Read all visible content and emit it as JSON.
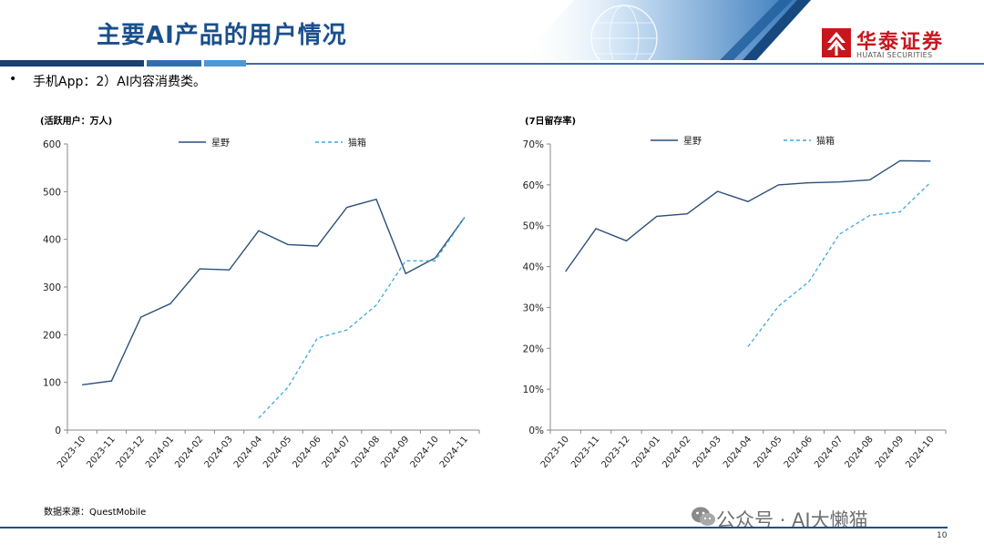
{
  "header": {
    "title": "主要AI产品的用户情况",
    "logo_cn": "华泰证券",
    "logo_en": "HUATAI SECURITIES",
    "brand_color": "#c8161d",
    "title_color": "#1a4f8a"
  },
  "bullet_symbol": "•",
  "subtitle": "手机App：2）AI内容消费类。",
  "source": "数据来源：QuestMobile",
  "watermark": "公众号 · AI大懒猫",
  "watermark_icon": "wechat-icon",
  "page_number": "10",
  "chart_data": [
    {
      "type": "line",
      "ylabel": "(活跃用户：万人)",
      "ylim": [
        0,
        600
      ],
      "yticks": [
        0,
        100,
        200,
        300,
        400,
        500,
        600
      ],
      "ytick_labels": [
        "0",
        "100",
        "200",
        "300",
        "400",
        "500",
        "600"
      ],
      "categories": [
        "2023-10",
        "2023-11",
        "2023-12",
        "2024-01",
        "2024-02",
        "2024-03",
        "2024-04",
        "2024-05",
        "2024-06",
        "2024-07",
        "2024-08",
        "2024-09",
        "2024-10",
        "2024-11"
      ],
      "legend_position": "top",
      "grid": false,
      "series": [
        {
          "name": "星野",
          "style": "solid",
          "color": "#2b4f7a",
          "values": [
            95,
            103,
            237,
            265,
            338,
            336,
            418,
            389,
            386,
            467,
            484,
            328,
            361,
            446
          ]
        },
        {
          "name": "猫箱",
          "style": "dashed",
          "color": "#3fa9dc",
          "values": [
            null,
            null,
            null,
            null,
            null,
            null,
            25,
            90,
            193,
            210,
            262,
            355,
            355,
            446
          ]
        }
      ]
    },
    {
      "type": "line",
      "ylabel": "(7日留存率)",
      "ylim": [
        0,
        70
      ],
      "yticks": [
        0,
        10,
        20,
        30,
        40,
        50,
        60,
        70
      ],
      "ytick_labels": [
        "0%",
        "10%",
        "20%",
        "30%",
        "40%",
        "50%",
        "60%",
        "70%"
      ],
      "categories": [
        "2023-10",
        "2023-11",
        "2023-12",
        "2024-01",
        "2024-02",
        "2024-03",
        "2024-04",
        "2024-05",
        "2024-06",
        "2024-07",
        "2024-08",
        "2024-09",
        "2024-10"
      ],
      "legend_position": "top",
      "grid": false,
      "series": [
        {
          "name": "星野",
          "style": "solid",
          "color": "#2b4f7a",
          "values": [
            38.8,
            49.3,
            46.3,
            52.3,
            52.9,
            58.4,
            55.9,
            60.0,
            60.5,
            60.7,
            61.2,
            65.9,
            65.8
          ]
        },
        {
          "name": "猫箱",
          "style": "dashed",
          "color": "#3fa9dc",
          "values": [
            null,
            null,
            null,
            null,
            null,
            null,
            20.4,
            30.3,
            36.3,
            47.9,
            52.5,
            53.4,
            60.6
          ]
        }
      ]
    }
  ]
}
